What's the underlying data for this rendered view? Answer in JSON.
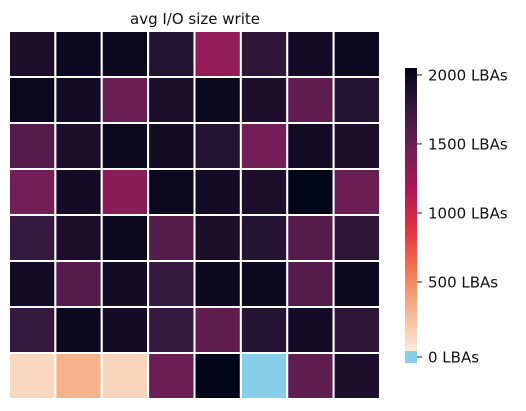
{
  "chart_data": {
    "type": "heatmap",
    "title": "avg I/O size write",
    "rows": 8,
    "cols": 8,
    "values": [
      [
        1900,
        2000,
        2000,
        1850,
        1300,
        1800,
        1950,
        2000
      ],
      [
        2000,
        1950,
        1500,
        1900,
        2000,
        1900,
        1550,
        1850
      ],
      [
        1600,
        1900,
        2000,
        1950,
        1850,
        1450,
        1950,
        1900
      ],
      [
        1450,
        1950,
        1350,
        2000,
        1950,
        1900,
        2050,
        1500
      ],
      [
        1750,
        1900,
        2000,
        1600,
        1900,
        1850,
        1600,
        1800
      ],
      [
        1950,
        1600,
        1950,
        1750,
        2000,
        2000,
        1600,
        2000
      ],
      [
        1750,
        2000,
        1950,
        1750,
        1550,
        1850,
        1950,
        1800
      ],
      [
        100,
        300,
        120,
        1500,
        2050,
        0,
        1550,
        1900
      ]
    ],
    "vmin": 0,
    "vmax": 2050,
    "colorbar": {
      "ticks": [
        0,
        500,
        1000,
        1500,
        2000
      ],
      "tick_labels": [
        "0 LBAs",
        "500 LBAs",
        "1000 LBAs",
        "1500 LBAs",
        "2000 LBAs"
      ],
      "zero_color": "#87ceeb"
    },
    "colormap": [
      "#faebdd",
      "#f6b48e",
      "#f37651",
      "#e13342",
      "#ad1759",
      "#701f57",
      "#35193e",
      "#03051a"
    ],
    "grid_line_color": "#ffffff"
  }
}
